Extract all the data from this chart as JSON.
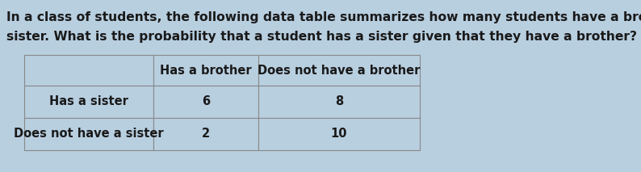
{
  "title_line1": "In a class of students, the following data table summarizes how many students have a brother or a",
  "title_line2": "sister. What is the probability that a student has a sister given that they have a brother?",
  "col_headers": [
    "Has a brother",
    "Does not have a brother"
  ],
  "row_headers": [
    "Has a sister",
    "Does not have a sister"
  ],
  "values": [
    [
      6,
      8
    ],
    [
      2,
      10
    ]
  ],
  "bg_color": "#b8cfe0",
  "cell_bg": "#b8cfe0",
  "text_color": "#1a1a1a",
  "border_color": "#888888",
  "font_size_title": 11.2,
  "font_size_table": 10.5,
  "fig_width": 7.94,
  "fig_height": 2.13,
  "dpi": 100
}
